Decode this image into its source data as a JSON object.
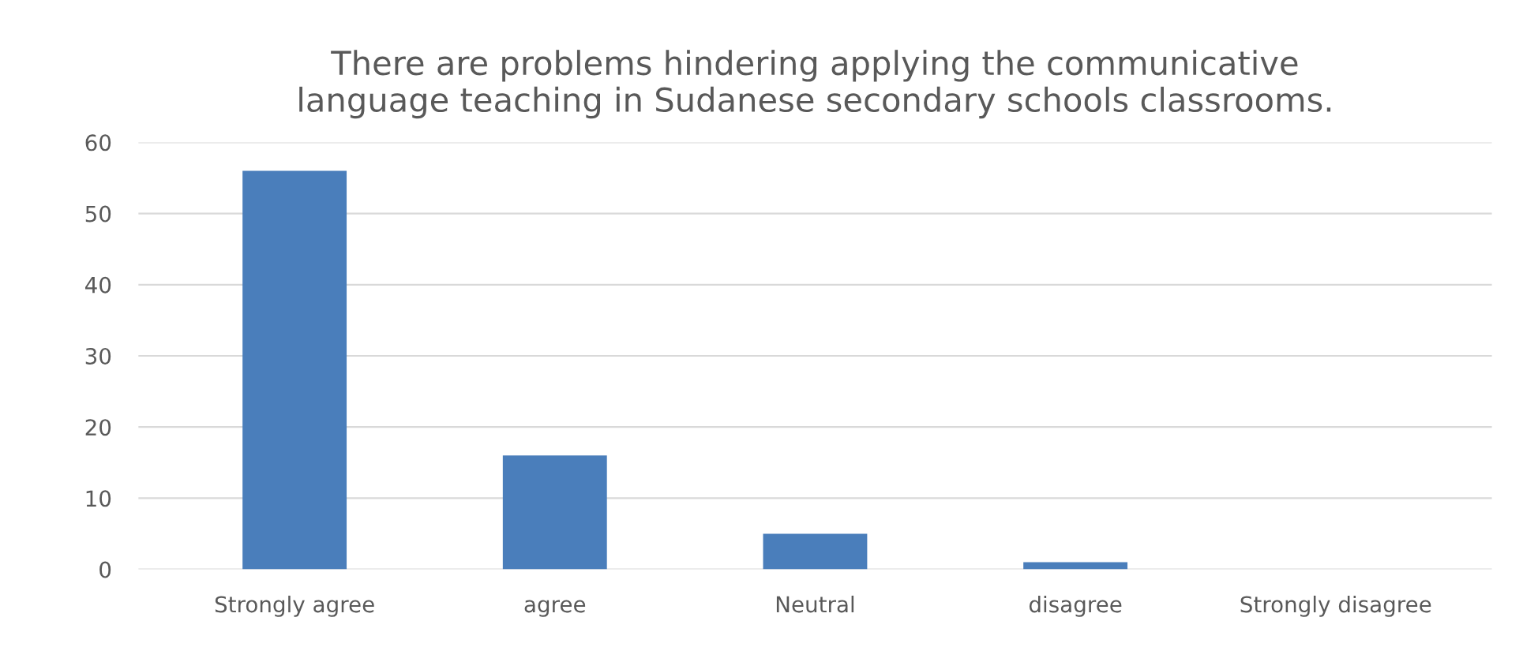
{
  "chart_data": {
    "type": "bar",
    "title": "There are problems hindering applying the communicative\nlanguage teaching in Sudanese secondary schools classrooms.",
    "categories": [
      "Strongly agree",
      "agree",
      "Neutral",
      "disagree",
      "Strongly disagree"
    ],
    "values": [
      56,
      16,
      5,
      1,
      0
    ],
    "color": "#4a7ebb",
    "ylim": [
      0,
      60
    ],
    "yticks": [
      0,
      10,
      20,
      30,
      40,
      50,
      60
    ],
    "grid": "y"
  }
}
